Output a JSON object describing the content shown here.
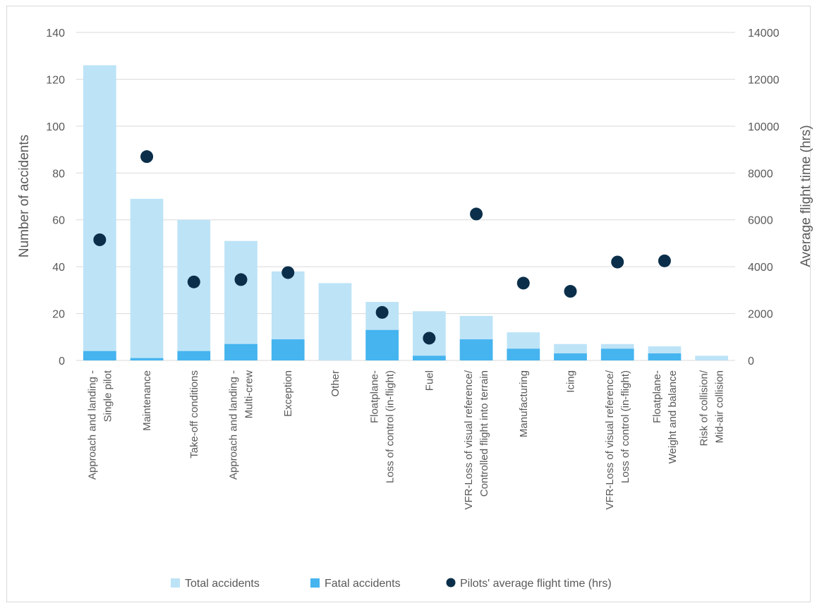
{
  "chart_data": {
    "type": "bar",
    "categories": [
      [
        "Approach and landing -",
        "Single pilot"
      ],
      [
        "Maintenance"
      ],
      [
        "Take-off conditions"
      ],
      [
        "Approach and landing -",
        "Multi-crew"
      ],
      [
        "Exception"
      ],
      [
        "Other"
      ],
      [
        "Floatplane-",
        "Loss of control (in-flight)"
      ],
      [
        "Fuel"
      ],
      [
        "VFR-Loss of visual reference/",
        "Controlled flight into terrain"
      ],
      [
        "Manufacturing"
      ],
      [
        "Icing"
      ],
      [
        "VFR-Loss of visual reference/",
        "Loss of control (in-flight)"
      ],
      [
        "Floatplane-",
        "Weight and balance"
      ],
      [
        "Risk of collision/",
        "Mid-air collision"
      ]
    ],
    "series": [
      {
        "name": "Total accidents",
        "type": "bar",
        "axis": "left",
        "color": "#bde3f7",
        "values": [
          126,
          69,
          60,
          51,
          38,
          33,
          25,
          21,
          19,
          12,
          7,
          7,
          6,
          2
        ]
      },
      {
        "name": "Fatal accidents",
        "type": "bar",
        "axis": "left",
        "color": "#45b4ef",
        "values": [
          4,
          1,
          4,
          7,
          9,
          0,
          13,
          2,
          9,
          5,
          3,
          5,
          3,
          0
        ]
      },
      {
        "name": "Pilots' average flight time (hrs)",
        "type": "scatter",
        "axis": "right",
        "color": "#0b2f4a",
        "values": [
          5150,
          8700,
          3350,
          3450,
          3750,
          null,
          2050,
          950,
          6250,
          3300,
          2950,
          4200,
          4250,
          null
        ]
      }
    ],
    "ylabel": "Number of accidents",
    "y2label": "Average flight time (hrs)",
    "ylim": [
      0,
      140
    ],
    "yticks": [
      0,
      20,
      40,
      60,
      80,
      100,
      120,
      140
    ],
    "y2lim": [
      0,
      14000
    ],
    "y2ticks": [
      0,
      2000,
      4000,
      6000,
      8000,
      10000,
      12000,
      14000
    ],
    "grid": true,
    "legend_position": "bottom"
  }
}
